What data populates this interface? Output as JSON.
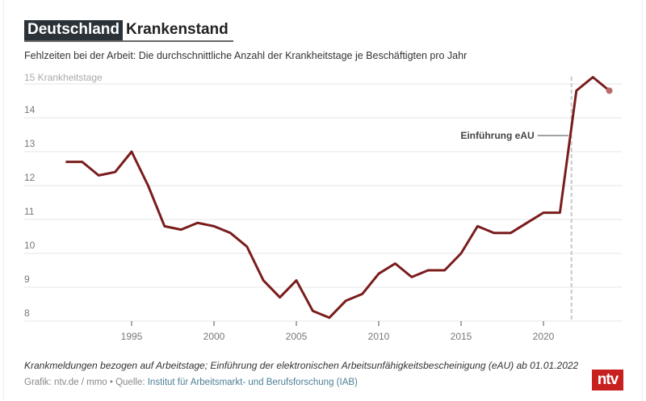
{
  "header": {
    "tag": "Deutschland",
    "title": "Krankenstand",
    "subtitle": "Fehlzeiten bei der Arbeit: Die durchschnittliche Anzahl der Krankheitstage je Beschäftigten pro Jahr"
  },
  "chart_data": {
    "type": "line",
    "title": "Krankenstand",
    "ylabel": "15 Krankheitstage",
    "ylim": [
      8,
      15
    ],
    "xlim": [
      1991,
      2024
    ],
    "yticks": [
      8,
      9,
      10,
      11,
      12,
      13,
      14,
      15
    ],
    "ytick_labels": [
      "8",
      "9",
      "10",
      "11",
      "12",
      "13",
      "14",
      ""
    ],
    "xticks": [
      1995,
      2000,
      2005,
      2010,
      2015,
      2020
    ],
    "xtick_labels": [
      "1995",
      "2000",
      "2005",
      "2010",
      "2015",
      "2020"
    ],
    "grid": "horizontal",
    "line_color": "#7a1c1c",
    "x": [
      1991,
      1992,
      1993,
      1994,
      1995,
      1996,
      1997,
      1998,
      1999,
      2000,
      2001,
      2002,
      2003,
      2004,
      2005,
      2006,
      2007,
      2008,
      2009,
      2010,
      2011,
      2012,
      2013,
      2014,
      2015,
      2016,
      2017,
      2018,
      2019,
      2020,
      2021,
      2022,
      2023,
      2024
    ],
    "values": [
      12.7,
      12.7,
      12.3,
      12.4,
      13.0,
      12.0,
      10.8,
      10.7,
      10.9,
      10.8,
      10.6,
      10.2,
      9.2,
      8.7,
      9.2,
      8.3,
      8.1,
      8.6,
      8.8,
      9.4,
      9.7,
      9.3,
      9.5,
      9.5,
      10.0,
      10.8,
      10.6,
      10.6,
      10.9,
      11.2,
      11.2,
      14.8,
      15.2,
      14.8
    ],
    "annotation": {
      "label": "Einführung eAU",
      "x": 2021.7
    }
  },
  "footer": {
    "note": "Krankmeldungen bezogen auf Arbeitstage; Einführung der elektronischen Arbeitsunfähigkeitsbescheinigung (eAU) ab 01.01.2022",
    "source_prefix": "Grafik: ntv.de / mmo • Quelle: ",
    "source_link": "Institut für Arbeitsmarkt- und Berufsforschung (IAB)",
    "logo": "ntv"
  }
}
